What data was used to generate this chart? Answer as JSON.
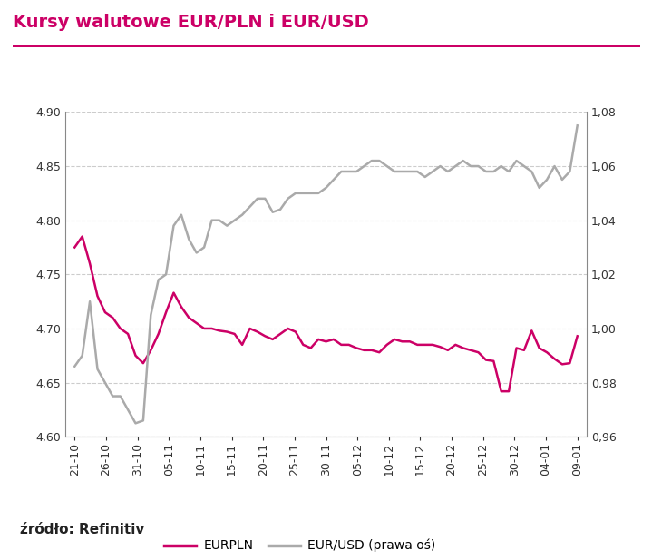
{
  "title": "Kursy walutowe EUR/PLN i EUR/USD",
  "source_label": "źródło: Refinitiv",
  "x_labels": [
    "21-10",
    "26-10",
    "31-10",
    "05-11",
    "10-11",
    "15-11",
    "20-11",
    "25-11",
    "30-11",
    "05-12",
    "10-12",
    "15-12",
    "20-12",
    "25-12",
    "30-12",
    "04-01",
    "09-01"
  ],
  "eurpln": [
    4.775,
    4.785,
    4.76,
    4.73,
    4.715,
    4.71,
    4.7,
    4.695,
    4.675,
    4.668,
    4.68,
    4.695,
    4.715,
    4.733,
    4.72,
    4.71,
    4.705,
    4.7,
    4.7,
    4.698,
    4.697,
    4.695,
    4.685,
    4.7,
    4.697,
    4.693,
    4.69,
    4.695,
    4.7,
    4.697,
    4.685,
    4.682,
    4.69,
    4.688,
    4.69,
    4.685,
    4.685,
    4.682,
    4.68,
    4.68,
    4.678,
    4.685,
    4.69,
    4.688,
    4.688,
    4.685,
    4.685,
    4.685,
    4.683,
    4.68,
    4.685,
    4.682,
    4.68,
    4.678,
    4.671,
    4.67,
    4.642,
    4.642,
    4.682,
    4.68,
    4.698,
    4.682,
    4.678,
    4.672,
    4.667,
    4.668,
    4.693
  ],
  "eurusd": [
    0.986,
    0.99,
    1.01,
    0.985,
    0.98,
    0.975,
    0.975,
    0.97,
    0.965,
    0.966,
    1.005,
    1.018,
    1.02,
    1.038,
    1.042,
    1.033,
    1.028,
    1.03,
    1.04,
    1.04,
    1.038,
    1.04,
    1.042,
    1.045,
    1.048,
    1.048,
    1.043,
    1.044,
    1.048,
    1.05,
    1.05,
    1.05,
    1.05,
    1.052,
    1.055,
    1.058,
    1.058,
    1.058,
    1.06,
    1.062,
    1.062,
    1.06,
    1.058,
    1.058,
    1.058,
    1.058,
    1.056,
    1.058,
    1.06,
    1.058,
    1.06,
    1.062,
    1.06,
    1.06,
    1.058,
    1.058,
    1.06,
    1.058,
    1.062,
    1.06,
    1.058,
    1.052,
    1.055,
    1.06,
    1.055,
    1.058,
    1.075
  ],
  "eurpln_color": "#cc0066",
  "eurusd_color": "#aaaaaa",
  "ylim_left": [
    4.6,
    4.9
  ],
  "ylim_right": [
    0.96,
    1.08
  ],
  "yticks_left": [
    4.6,
    4.65,
    4.7,
    4.75,
    4.8,
    4.85,
    4.9
  ],
  "yticks_right": [
    0.96,
    0.98,
    1.0,
    1.02,
    1.04,
    1.06,
    1.08
  ],
  "legend_eurpln": "EURPLN",
  "legend_eurusd": "EUR/USD (prawa oś)",
  "background_color": "#ffffff",
  "title_color": "#cc0066",
  "source_color": "#222222",
  "grid_color": "#cccccc",
  "title_fontsize": 14,
  "tick_fontsize": 9,
  "legend_fontsize": 10,
  "source_fontsize": 11,
  "line_width": 1.8
}
